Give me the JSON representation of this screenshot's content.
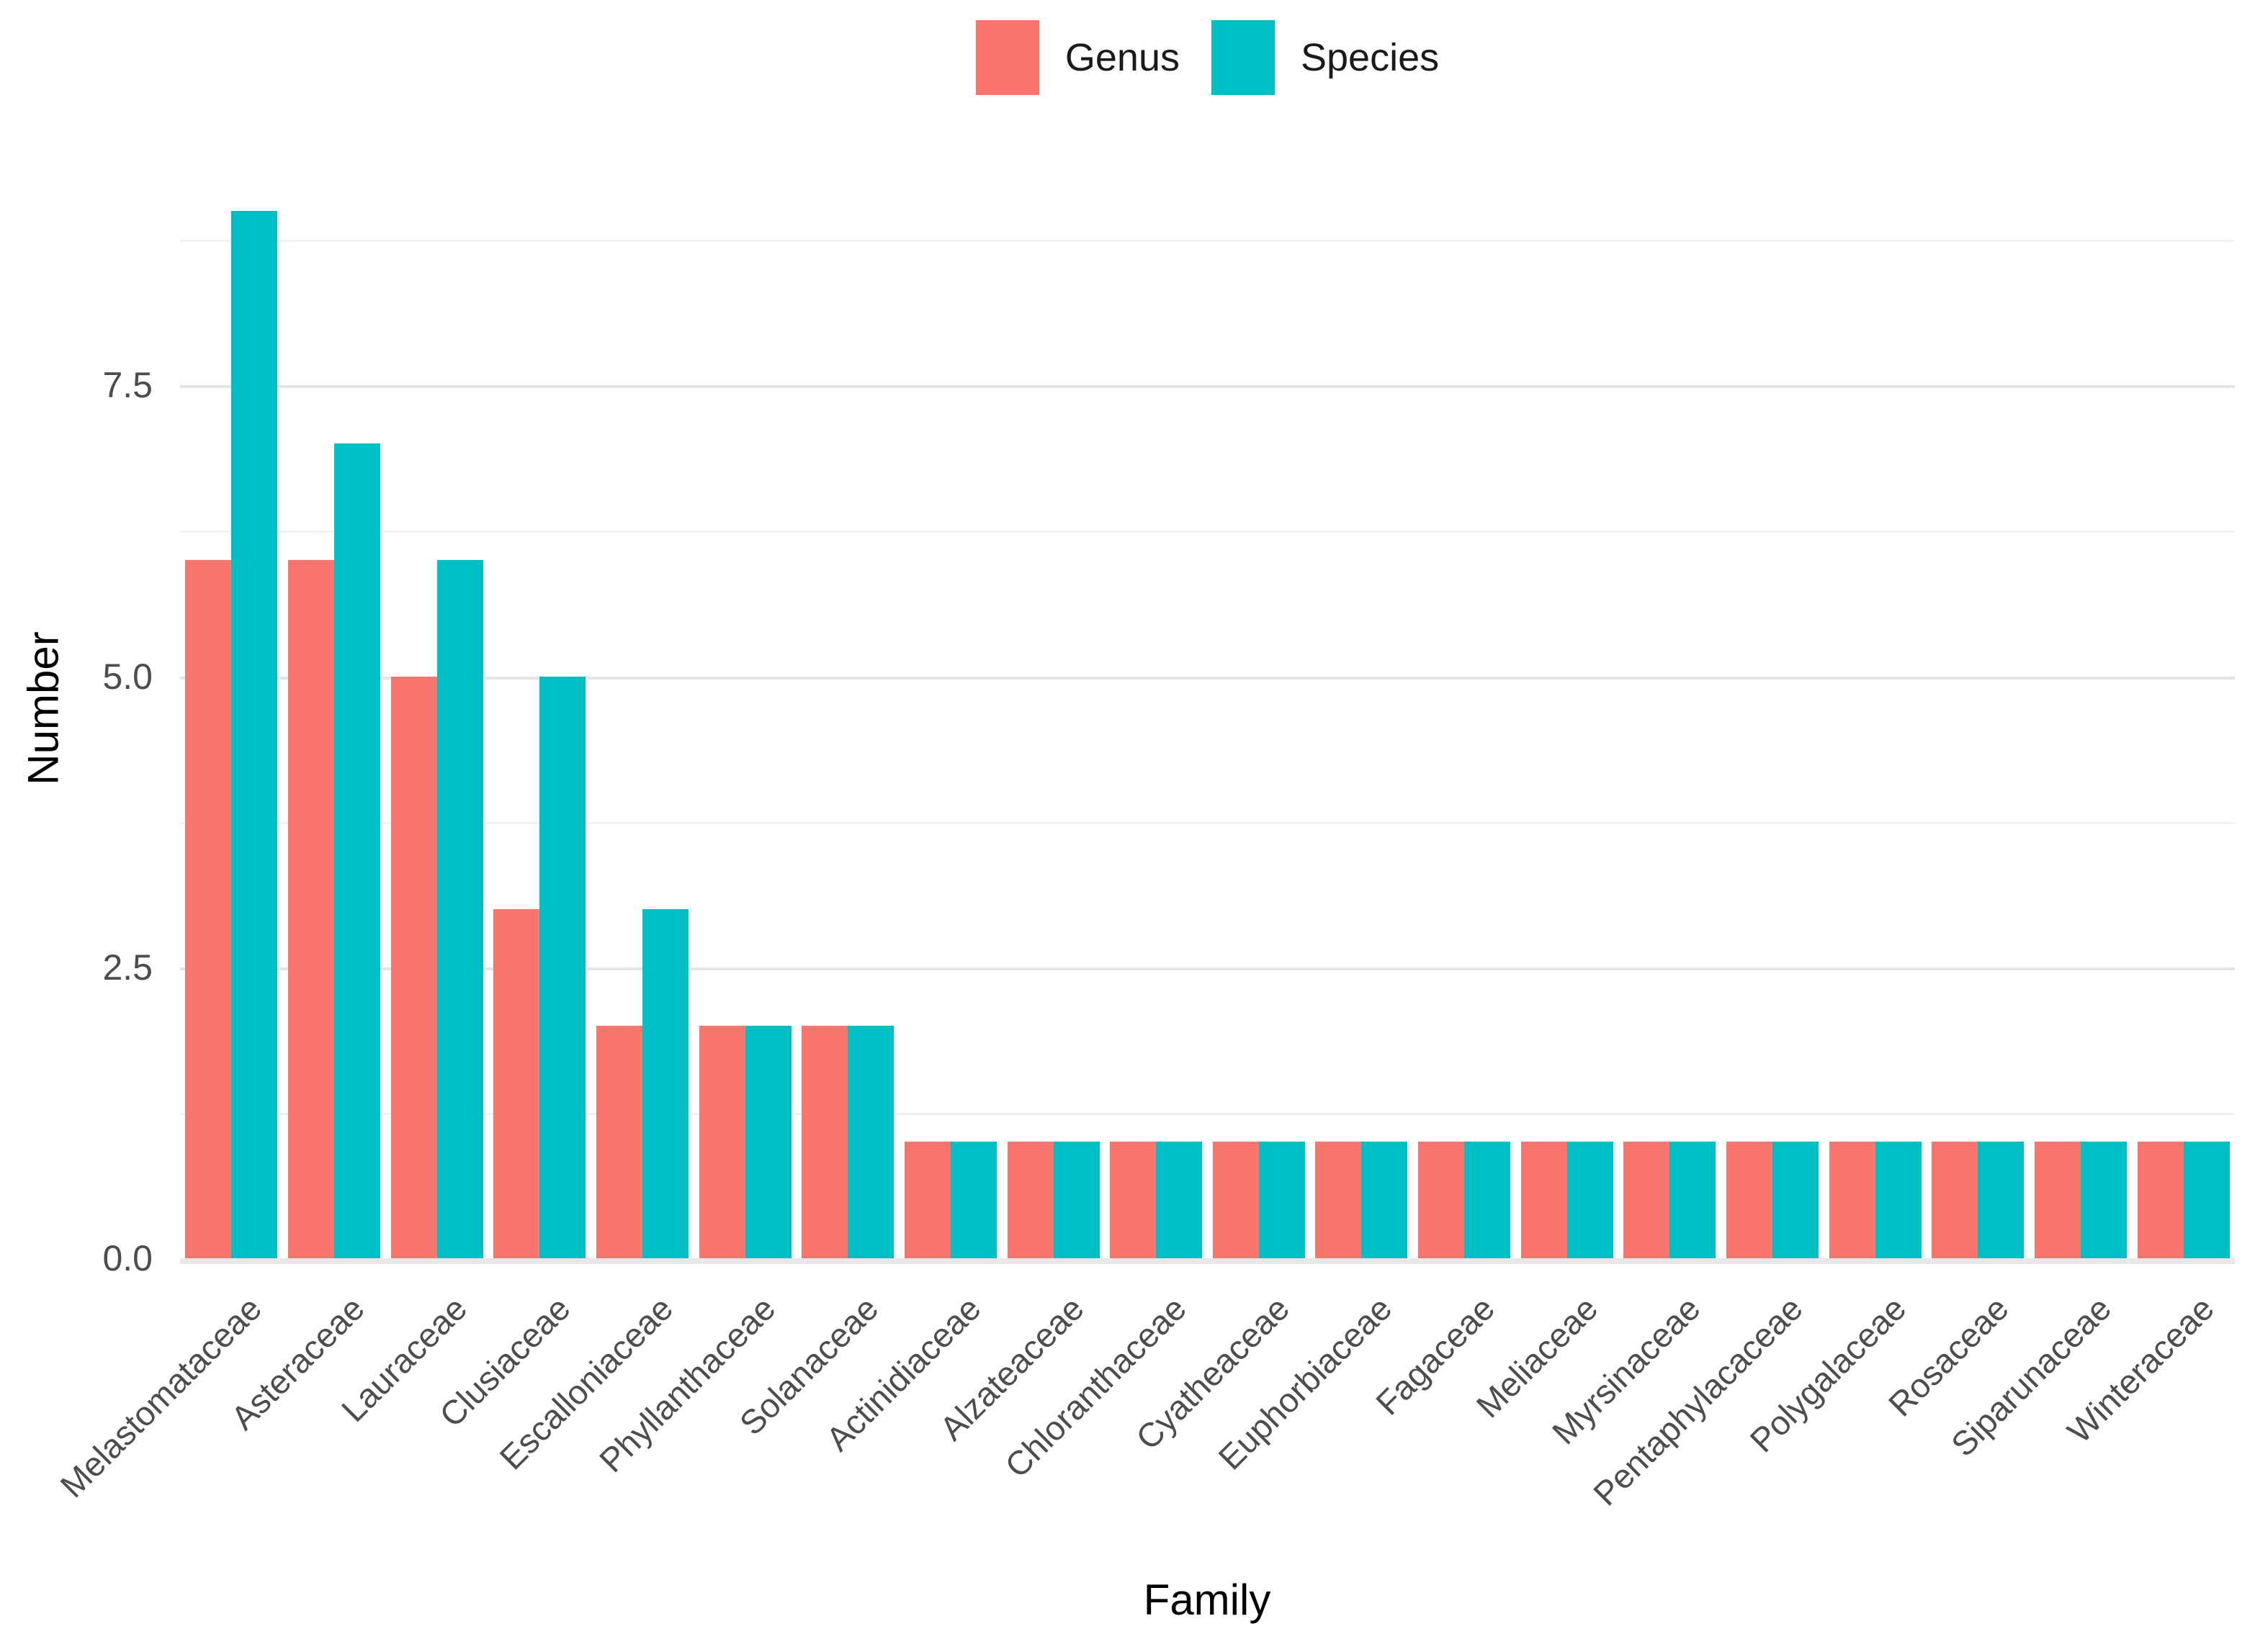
{
  "chart_data": {
    "type": "bar",
    "title": "",
    "xlabel": "Family",
    "ylabel": "Number",
    "categories": [
      "Melastomataceae",
      "Asteraceae",
      "Lauraceae",
      "Clusiaceae",
      "Escalloniaceae",
      "Phyllanthaceae",
      "Solanaceae",
      "Actinidiaceae",
      "Alzateaceae",
      "Chloranthaceae",
      "Cyatheaceae",
      "Euphorbiaceae",
      "Fagaceae",
      "Meliaceae",
      "Myrsinaceae",
      "Pentaphylacaceae",
      "Polygalaceae",
      "Rosaceae",
      "Siparunaceae",
      "Winteraceae"
    ],
    "series": [
      {
        "name": "Genus",
        "color": "#F8766D",
        "values": [
          6,
          6,
          5,
          3,
          2,
          2,
          2,
          1,
          1,
          1,
          1,
          1,
          1,
          1,
          1,
          1,
          1,
          1,
          1,
          1
        ]
      },
      {
        "name": "Species",
        "color": "#00BFC4",
        "values": [
          9,
          7,
          6,
          5,
          3,
          2,
          2,
          1,
          1,
          1,
          1,
          1,
          1,
          1,
          1,
          1,
          1,
          1,
          1,
          1
        ]
      }
    ],
    "y_ticks": [
      0,
      2.5,
      5,
      7.5
    ],
    "y_tick_labels": [
      "0.0",
      "2.5",
      "5.0",
      "7.5"
    ],
    "ylim": [
      0,
      9.45
    ],
    "grid": {
      "major": [
        0,
        2.5,
        5,
        7.5
      ],
      "minor": [
        1.25,
        3.75,
        6.25,
        8.75
      ],
      "vertical": "off"
    },
    "legend_position": "top-center",
    "bar_grouping": "dodge"
  }
}
